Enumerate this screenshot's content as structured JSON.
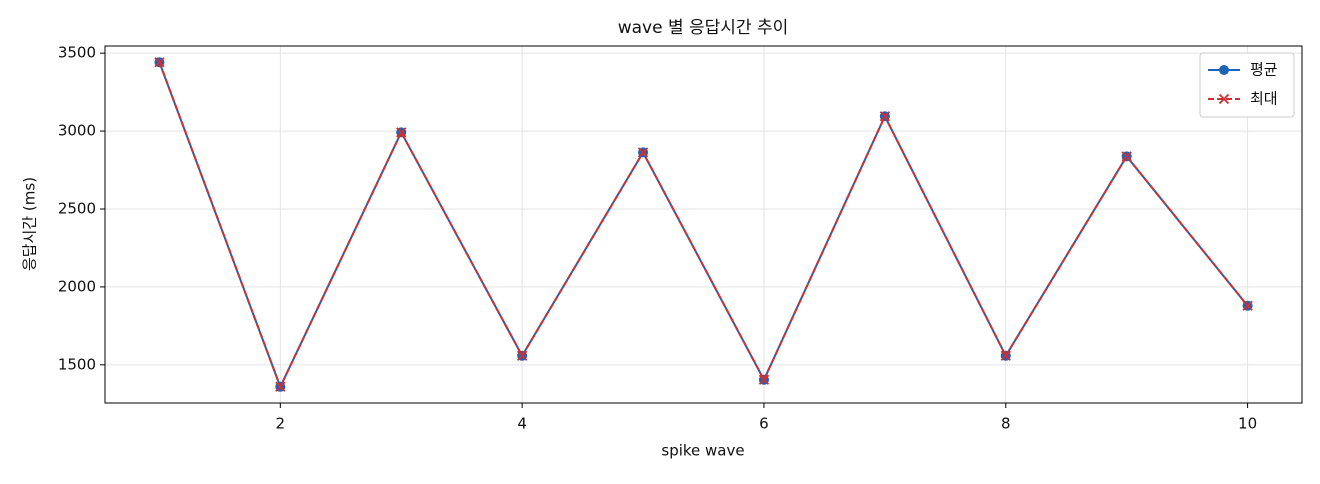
{
  "chart_data": {
    "type": "line",
    "title": "wave 별 응답시간 추이",
    "x_label": "spike wave",
    "y_label": "응답시간 (ms)",
    "x": [
      1,
      2,
      3,
      4,
      5,
      6,
      7,
      8,
      9,
      10
    ],
    "series": [
      {
        "name": "평균",
        "color": "#1f63b8",
        "marker": "o",
        "linestyle": "solid",
        "values": [
          3442,
          1359,
          2992,
          1558,
          2863,
          1404,
          3095,
          1558,
          2838,
          1879
        ]
      },
      {
        "name": "최대",
        "color": "#d03030",
        "marker": "x",
        "linestyle": "dashed",
        "values": [
          3442,
          1359,
          2992,
          1558,
          2863,
          1404,
          3095,
          1558,
          2838,
          1879
        ]
      }
    ],
    "xlim": [
      0.55,
      10.45
    ],
    "ylim": [
      1255,
      3546
    ],
    "xticks": [
      2,
      4,
      6,
      8,
      10
    ],
    "yticks": [
      1500,
      2000,
      2500,
      3000,
      3500
    ],
    "grid": true,
    "legend": "upper right"
  }
}
